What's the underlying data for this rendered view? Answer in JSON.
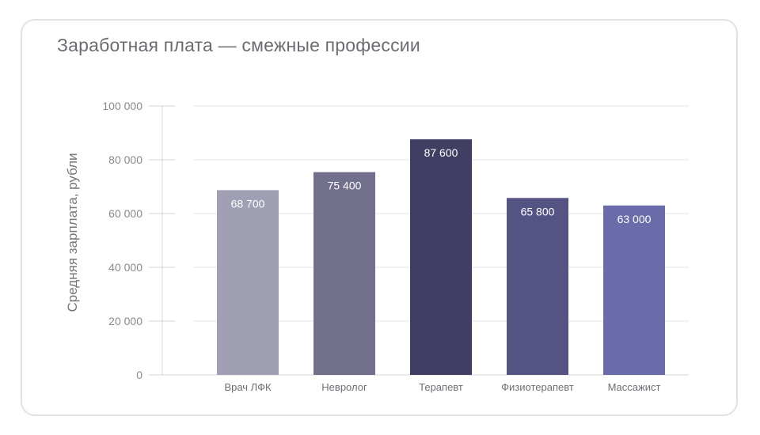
{
  "chart_data": {
    "type": "bar",
    "title": "Заработная плата — смежные профессии",
    "ylabel": "Средняя зарплата, рубли",
    "xlabel": "",
    "ylim": [
      0,
      100000
    ],
    "yticks": [
      0,
      20000,
      40000,
      60000,
      80000,
      100000
    ],
    "ytick_labels": [
      "0",
      "20 000",
      "40 000",
      "60 000",
      "80 000",
      "100 000"
    ],
    "grid": true,
    "categories": [
      "Врач ЛФК",
      "Невролог",
      "Терапевт",
      "Физиотерапевт",
      "Массажист"
    ],
    "values": [
      68700,
      75400,
      87600,
      65800,
      63000
    ],
    "value_labels": [
      "68 700",
      "75 400",
      "87 600",
      "65 800",
      "63 000"
    ],
    "colors": [
      "#a09fb4",
      "#716f8c",
      "#403e63",
      "#545384",
      "#6a6ca9"
    ]
  }
}
